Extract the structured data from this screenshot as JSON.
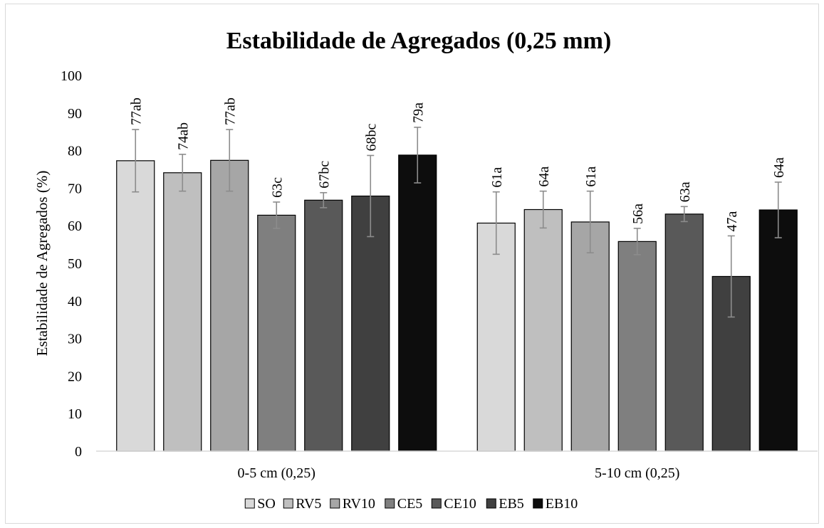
{
  "chart_data": {
    "type": "bar",
    "title": "Estabilidade de Agregados (0,25 mm)",
    "ylabel": "Estabilidade de Agregados  (%)",
    "xlabel": "",
    "ylim": [
      0,
      100
    ],
    "yticks": [
      0,
      10,
      20,
      30,
      40,
      50,
      60,
      70,
      80,
      90,
      100
    ],
    "categories": [
      "0-5 cm (0,25)",
      "5-10 cm (0,25)"
    ],
    "legend_position": "bottom",
    "grid": false,
    "series": [
      {
        "name": "SO",
        "color": "#d9d9d9",
        "values": [
          77.3,
          60.7
        ],
        "errors": [
          8.3,
          8.3
        ],
        "labels": [
          "77ab",
          "61a"
        ]
      },
      {
        "name": "RV5",
        "color": "#bfbfbf",
        "values": [
          74.1,
          64.3
        ],
        "errors": [
          4.9,
          4.9
        ],
        "labels": [
          "74ab",
          "64a"
        ]
      },
      {
        "name": "RV10",
        "color": "#a6a6a6",
        "values": [
          77.4,
          61.0
        ],
        "errors": [
          8.2,
          8.2
        ],
        "labels": [
          "77ab",
          "61a"
        ]
      },
      {
        "name": "CE5",
        "color": "#7f7f7f",
        "values": [
          62.8,
          55.8
        ],
        "errors": [
          3.5,
          3.5
        ],
        "labels": [
          "63c",
          "56a"
        ]
      },
      {
        "name": "CE10",
        "color": "#595959",
        "values": [
          66.8,
          63.1
        ],
        "errors": [
          2.0,
          2.0
        ],
        "labels": [
          "67bc",
          "63a"
        ]
      },
      {
        "name": "EB5",
        "color": "#404040",
        "values": [
          67.9,
          46.5
        ],
        "errors": [
          10.8,
          10.8
        ],
        "labels": [
          "68bc",
          "47a"
        ]
      },
      {
        "name": "EB10",
        "color": "#0d0d0d",
        "values": [
          78.8,
          64.2
        ],
        "errors": [
          7.4,
          7.4
        ],
        "labels": [
          "79a",
          "64a"
        ]
      }
    ]
  }
}
